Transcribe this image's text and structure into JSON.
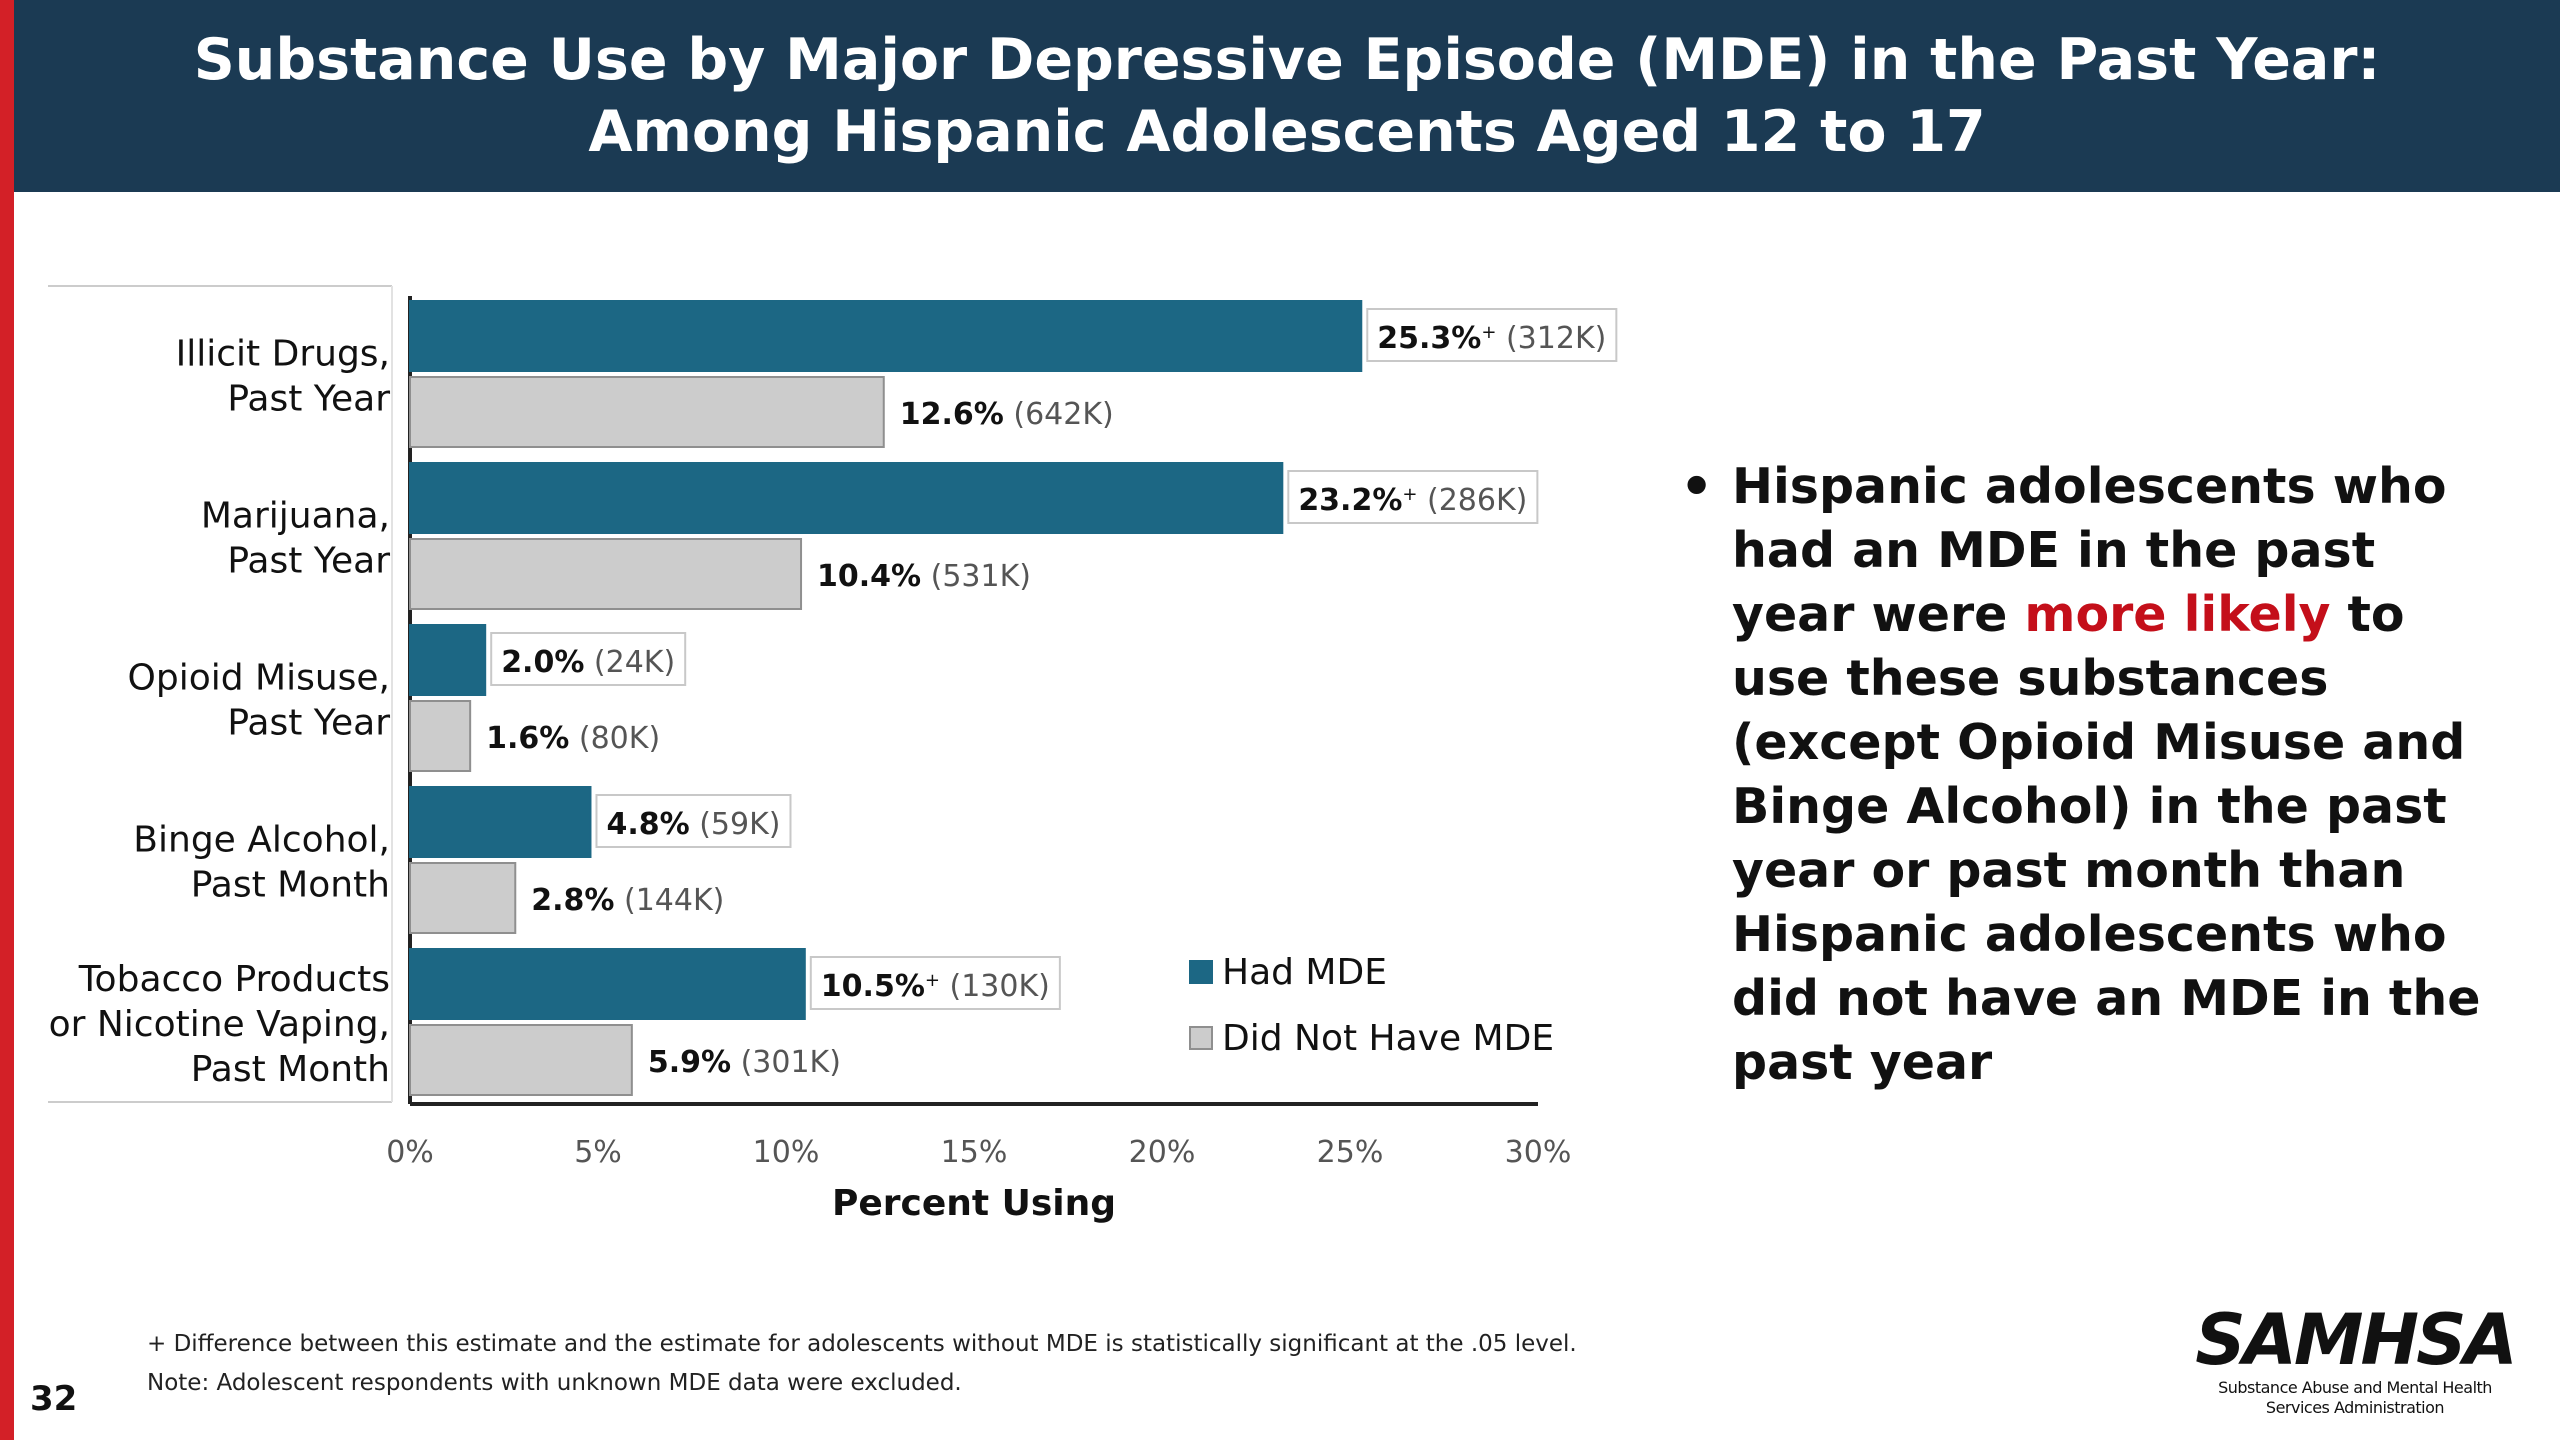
{
  "slide": {
    "title_line1": "Substance Use by Major Depressive Episode (MDE) in the Past Year:",
    "title_line2": "Among Hispanic Adolescents Aged 12 to 17",
    "page_number": "32",
    "accent_color": "#d32027",
    "header_color": "#1b3a53"
  },
  "bullet": {
    "before": "Hispanic adolescents who had an MDE in the past year were ",
    "emphasis": "more likely",
    "after": " to use these substances (except Opioid Misuse and Binge Alcohol) in the past year or past month than Hispanic adolescents who did not have an MDE in the past year",
    "emphasis_color": "#c40f1a"
  },
  "footnotes": {
    "line1": "+ Difference between this estimate and the estimate for adolescents without MDE is statistically significant at the .05 level.",
    "line2": "Note: Adolescent respondents with unknown MDE data were excluded."
  },
  "logo": {
    "word": "SAMHSA",
    "sub_line1": "Substance Abuse and Mental Health",
    "sub_line2": "Services Administration"
  },
  "chart_data": {
    "type": "bar",
    "orientation": "horizontal",
    "categories": [
      [
        "Illicit Drugs,",
        "Past Year"
      ],
      [
        "Marijuana,",
        "Past Year"
      ],
      [
        "Opioid Misuse,",
        "Past Year"
      ],
      [
        "Binge Alcohol,",
        "Past Month"
      ],
      [
        "Tobacco Products",
        "or Nicotine Vaping,",
        "Past Month"
      ]
    ],
    "series": [
      {
        "name": "Had MDE",
        "color": "#1c6784",
        "values": [
          25.3,
          23.2,
          2.0,
          4.8,
          10.5
        ],
        "labels": [
          "25.3%",
          "23.2%",
          "2.0%",
          "4.8%",
          "10.5%"
        ],
        "counts": [
          "(312K)",
          "(286K)",
          "(24K)",
          "(59K)",
          "(130K)"
        ],
        "significant": [
          true,
          true,
          false,
          false,
          true
        ]
      },
      {
        "name": "Did Not Have MDE",
        "color": "#cccccc",
        "values": [
          12.6,
          10.4,
          1.6,
          2.8,
          5.9
        ],
        "labels": [
          "12.6%",
          "10.4%",
          "1.6%",
          "2.8%",
          "5.9%"
        ],
        "counts": [
          "(642K)",
          "(531K)",
          "(80K)",
          "(144K)",
          "(301K)"
        ],
        "significant": [
          false,
          false,
          false,
          false,
          false
        ]
      }
    ],
    "xlim": [
      0,
      30
    ],
    "xticks": [
      0,
      5,
      10,
      15,
      20,
      25,
      30
    ],
    "xtick_labels": [
      "0%",
      "5%",
      "10%",
      "15%",
      "20%",
      "25%",
      "30%"
    ],
    "xlabel": "Percent Using",
    "ylabel": "",
    "sig_marker": "+",
    "legend_position": "bottom-right",
    "grid": false
  }
}
